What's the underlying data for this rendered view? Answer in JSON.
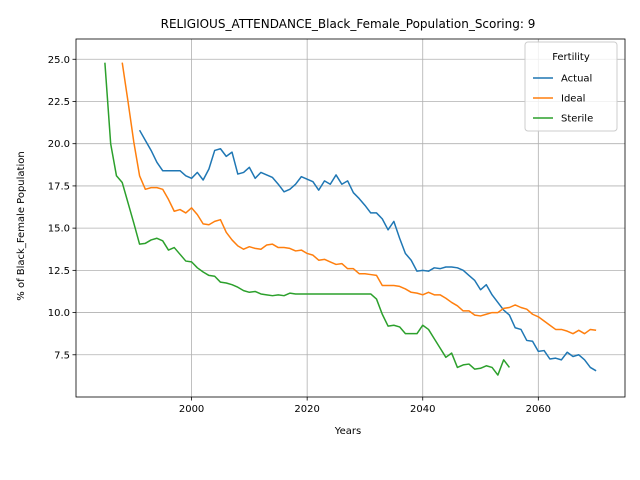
{
  "chart_data": {
    "type": "line",
    "title": "RELIGIOUS_ATTENDANCE_Black_Female_Population_Scoring: 9",
    "xlabel": "Years",
    "ylabel": "% of Black_Female Population",
    "xlim": [
      1980,
      2075
    ],
    "ylim": [
      5.0,
      26.2
    ],
    "xticks": [
      2000,
      2020,
      2040,
      2060
    ],
    "yticks": [
      7.5,
      10.0,
      12.5,
      15.0,
      17.5,
      20.0,
      22.5,
      25.0
    ],
    "ytick_labels": [
      "7.5",
      "10.0",
      "12.5",
      "15.0",
      "17.5",
      "20.0",
      "22.5",
      "25.0"
    ],
    "grid": true,
    "legend": {
      "title": "Fertility",
      "placement": "top-right"
    },
    "series": [
      {
        "name": "Actual",
        "color": "#1f77b4",
        "x": [
          1991,
          1992,
          1993,
          1994,
          1995,
          1996,
          1997,
          1998,
          1999,
          2000,
          2001,
          2002,
          2003,
          2004,
          2005,
          2006,
          2007,
          2008,
          2009,
          2010,
          2011,
          2012,
          2013,
          2014,
          2015,
          2016,
          2017,
          2018,
          2019,
          2020,
          2021,
          2022,
          2023,
          2024,
          2025,
          2026,
          2027,
          2028,
          2029,
          2030,
          2031,
          2032,
          2033,
          2034,
          2035,
          2036,
          2037,
          2038,
          2039,
          2040,
          2041,
          2042,
          2043,
          2044,
          2045,
          2046,
          2047,
          2048,
          2049,
          2050,
          2051,
          2052,
          2053,
          2054,
          2055,
          2056,
          2057,
          2058,
          2059,
          2060,
          2061,
          2062,
          2063,
          2064,
          2065,
          2066,
          2067,
          2068,
          2069,
          2070
        ],
        "y": [
          20.8,
          20.2,
          19.6,
          18.9,
          18.4,
          18.4,
          18.4,
          18.4,
          18.1,
          17.95,
          18.3,
          17.85,
          18.5,
          19.6,
          19.7,
          19.25,
          19.5,
          18.2,
          18.3,
          18.6,
          17.95,
          18.3,
          18.15,
          18.0,
          17.6,
          17.15,
          17.3,
          17.6,
          18.05,
          17.9,
          17.75,
          17.25,
          17.8,
          17.6,
          18.15,
          17.6,
          17.8,
          17.1,
          16.75,
          16.35,
          15.9,
          15.9,
          15.55,
          14.9,
          15.4,
          14.4,
          13.5,
          13.1,
          12.45,
          12.5,
          12.45,
          12.65,
          12.6,
          12.7,
          12.7,
          12.65,
          12.5,
          12.2,
          11.9,
          11.35,
          11.65,
          11.05,
          10.6,
          10.15,
          9.85,
          9.1,
          9.0,
          8.35,
          8.3,
          7.7,
          7.75,
          7.25,
          7.3,
          7.2,
          7.65,
          7.4,
          7.5,
          7.2,
          6.75,
          6.55
        ]
      },
      {
        "name": "Ideal",
        "color": "#ff7f0e",
        "x": [
          1988,
          1989,
          1990,
          1991,
          1992,
          1993,
          1994,
          1995,
          1996,
          1997,
          1998,
          1999,
          2000,
          2001,
          2002,
          2003,
          2004,
          2005,
          2006,
          2007,
          2008,
          2009,
          2010,
          2011,
          2012,
          2013,
          2014,
          2015,
          2016,
          2017,
          2018,
          2019,
          2020,
          2021,
          2022,
          2023,
          2024,
          2025,
          2026,
          2027,
          2028,
          2029,
          2030,
          2031,
          2032,
          2033,
          2034,
          2035,
          2036,
          2037,
          2038,
          2039,
          2040,
          2041,
          2042,
          2043,
          2044,
          2045,
          2046,
          2047,
          2048,
          2049,
          2050,
          2051,
          2052,
          2053,
          2054,
          2055,
          2056,
          2057,
          2058,
          2059,
          2060,
          2061,
          2062,
          2063,
          2064,
          2065,
          2066,
          2067,
          2068,
          2069,
          2070
        ],
        "y": [
          24.8,
          22.5,
          20.1,
          18.1,
          17.3,
          17.4,
          17.4,
          17.3,
          16.7,
          16.0,
          16.1,
          15.9,
          16.2,
          15.8,
          15.25,
          15.2,
          15.4,
          15.5,
          14.75,
          14.3,
          13.95,
          13.75,
          13.9,
          13.8,
          13.75,
          14.0,
          14.05,
          13.85,
          13.85,
          13.8,
          13.65,
          13.7,
          13.5,
          13.4,
          13.1,
          13.15,
          13.0,
          12.85,
          12.9,
          12.6,
          12.6,
          12.3,
          12.3,
          12.25,
          12.2,
          11.6,
          11.6,
          11.6,
          11.55,
          11.4,
          11.2,
          11.15,
          11.05,
          11.2,
          11.05,
          11.05,
          10.85,
          10.6,
          10.4,
          10.1,
          10.1,
          9.85,
          9.8,
          9.9,
          10.0,
          10.0,
          10.25,
          10.3,
          10.45,
          10.3,
          10.2,
          9.9,
          9.75,
          9.5,
          9.25,
          9.0,
          9.0,
          8.9,
          8.75,
          8.95,
          8.75,
          9.0,
          8.95
        ]
      },
      {
        "name": "Sterile",
        "color": "#2ca02c",
        "x": [
          1985,
          1986,
          1987,
          1988,
          1989,
          1990,
          1991,
          1992,
          1993,
          1994,
          1995,
          1996,
          1997,
          1998,
          1999,
          2000,
          2001,
          2002,
          2003,
          2004,
          2005,
          2006,
          2007,
          2008,
          2009,
          2010,
          2011,
          2012,
          2013,
          2014,
          2015,
          2016,
          2017,
          2018,
          2019,
          2020,
          2021,
          2022,
          2023,
          2024,
          2025,
          2026,
          2027,
          2028,
          2029,
          2030,
          2031,
          2032,
          2033,
          2034,
          2035,
          2036,
          2037,
          2038,
          2039,
          2040,
          2041,
          2042,
          2043,
          2044,
          2045,
          2046,
          2047,
          2048,
          2049,
          2050,
          2051,
          2052,
          2053,
          2054,
          2055
        ],
        "y": [
          24.8,
          20.0,
          18.1,
          17.7,
          16.5,
          15.3,
          14.05,
          14.1,
          14.3,
          14.4,
          14.25,
          13.7,
          13.85,
          13.45,
          13.05,
          13.0,
          12.65,
          12.4,
          12.2,
          12.15,
          11.8,
          11.75,
          11.65,
          11.5,
          11.3,
          11.2,
          11.25,
          11.1,
          11.05,
          11.0,
          11.05,
          11.0,
          11.15,
          11.1,
          11.1,
          11.1,
          11.1,
          11.1,
          11.1,
          11.1,
          11.1,
          11.1,
          11.1,
          11.1,
          11.1,
          11.1,
          11.1,
          10.8,
          9.9,
          9.2,
          9.25,
          9.15,
          8.75,
          8.75,
          8.75,
          9.25,
          9.0,
          8.45,
          7.9,
          7.35,
          7.6,
          6.75,
          6.9,
          6.95,
          6.65,
          6.7,
          6.85,
          6.75,
          6.3,
          7.2,
          6.75
        ]
      }
    ]
  }
}
